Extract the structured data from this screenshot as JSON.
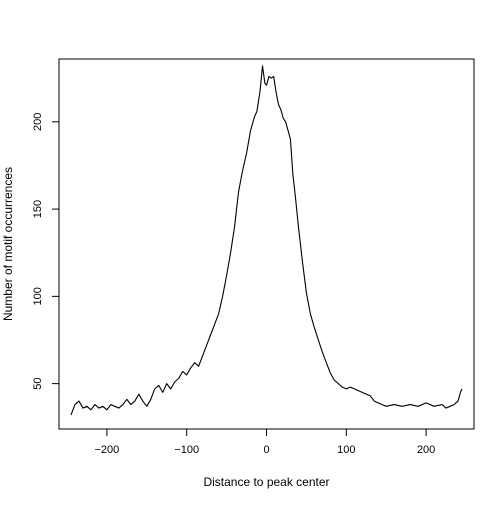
{
  "chart_data": {
    "type": "line",
    "xlabel": "Distance to peak center",
    "ylabel": "Number of motif occurrences",
    "xlim": [
      -260,
      260
    ],
    "ylim": [
      24,
      236
    ],
    "x_ticks": [
      -200,
      -100,
      0,
      100,
      200
    ],
    "y_ticks": [
      50,
      100,
      150,
      200
    ],
    "x_tick_labels": [
      "−200",
      "−100",
      "0",
      "100",
      "200"
    ],
    "y_tick_labels": [
      "50",
      "100",
      "150",
      "200"
    ],
    "grid": false,
    "series": [
      {
        "points": [
          [
            -245,
            32
          ],
          [
            -240,
            38
          ],
          [
            -235,
            40
          ],
          [
            -230,
            36
          ],
          [
            -225,
            37
          ],
          [
            -220,
            35
          ],
          [
            -215,
            38
          ],
          [
            -210,
            36
          ],
          [
            -205,
            37
          ],
          [
            -200,
            35
          ],
          [
            -195,
            38
          ],
          [
            -190,
            37
          ],
          [
            -185,
            36
          ],
          [
            -180,
            38
          ],
          [
            -175,
            41
          ],
          [
            -170,
            38
          ],
          [
            -165,
            40
          ],
          [
            -160,
            44
          ],
          [
            -155,
            40
          ],
          [
            -150,
            37
          ],
          [
            -145,
            41
          ],
          [
            -140,
            47
          ],
          [
            -135,
            49
          ],
          [
            -130,
            45
          ],
          [
            -125,
            50
          ],
          [
            -120,
            47
          ],
          [
            -115,
            51
          ],
          [
            -110,
            53
          ],
          [
            -105,
            57
          ],
          [
            -100,
            55
          ],
          [
            -95,
            59
          ],
          [
            -90,
            62
          ],
          [
            -85,
            60
          ],
          [
            -80,
            66
          ],
          [
            -75,
            72
          ],
          [
            -70,
            78
          ],
          [
            -65,
            84
          ],
          [
            -60,
            90
          ],
          [
            -55,
            100
          ],
          [
            -50,
            112
          ],
          [
            -45,
            125
          ],
          [
            -40,
            140
          ],
          [
            -35,
            160
          ],
          [
            -30,
            172
          ],
          [
            -25,
            182
          ],
          [
            -20,
            195
          ],
          [
            -15,
            203
          ],
          [
            -12,
            206
          ],
          [
            -8,
            218
          ],
          [
            -5,
            232
          ],
          [
            -2,
            222
          ],
          [
            0,
            221
          ],
          [
            3,
            226
          ],
          [
            6,
            225
          ],
          [
            9,
            226
          ],
          [
            12,
            217
          ],
          [
            15,
            210
          ],
          [
            18,
            207
          ],
          [
            21,
            202
          ],
          [
            24,
            200
          ],
          [
            27,
            195
          ],
          [
            30,
            190
          ],
          [
            33,
            170
          ],
          [
            36,
            158
          ],
          [
            40,
            140
          ],
          [
            45,
            120
          ],
          [
            50,
            102
          ],
          [
            55,
            90
          ],
          [
            60,
            82
          ],
          [
            65,
            75
          ],
          [
            70,
            68
          ],
          [
            75,
            62
          ],
          [
            80,
            56
          ],
          [
            85,
            52
          ],
          [
            90,
            50
          ],
          [
            95,
            48
          ],
          [
            100,
            47
          ],
          [
            105,
            48
          ],
          [
            110,
            47
          ],
          [
            115,
            46
          ],
          [
            120,
            45
          ],
          [
            125,
            44
          ],
          [
            130,
            43
          ],
          [
            135,
            40
          ],
          [
            140,
            39
          ],
          [
            145,
            38
          ],
          [
            150,
            37
          ],
          [
            160,
            38
          ],
          [
            170,
            37
          ],
          [
            180,
            38
          ],
          [
            190,
            37
          ],
          [
            200,
            39
          ],
          [
            210,
            37
          ],
          [
            220,
            38
          ],
          [
            225,
            36
          ],
          [
            230,
            37
          ],
          [
            235,
            38
          ],
          [
            240,
            40
          ],
          [
            243,
            45
          ],
          [
            245,
            47
          ]
        ]
      }
    ]
  }
}
